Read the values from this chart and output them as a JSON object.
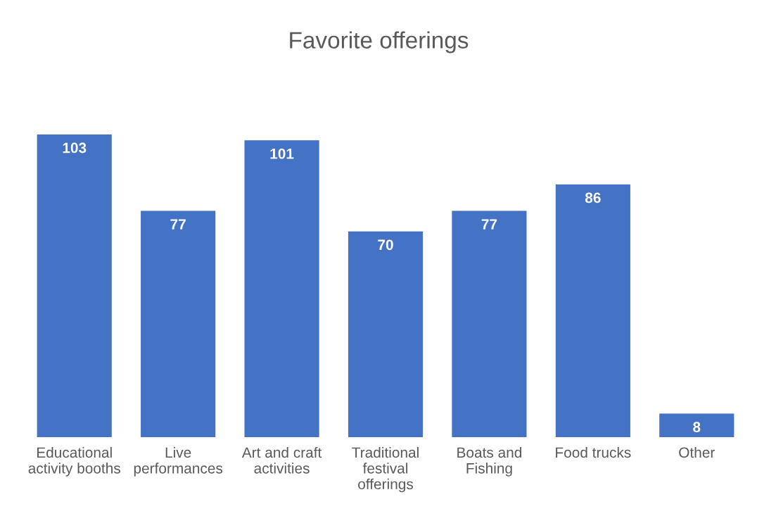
{
  "chart_data": {
    "type": "bar",
    "title": "Favorite offerings",
    "categories": [
      "Educational activity booths",
      "Live performances",
      "Art and craft activities",
      "Traditional festival offerings",
      "Boats and Fishing",
      "Food trucks",
      "Other"
    ],
    "values": [
      103,
      77,
      101,
      70,
      77,
      86,
      8
    ],
    "color": "#4472c4",
    "data_labels": true,
    "grid": false,
    "legend": false
  }
}
